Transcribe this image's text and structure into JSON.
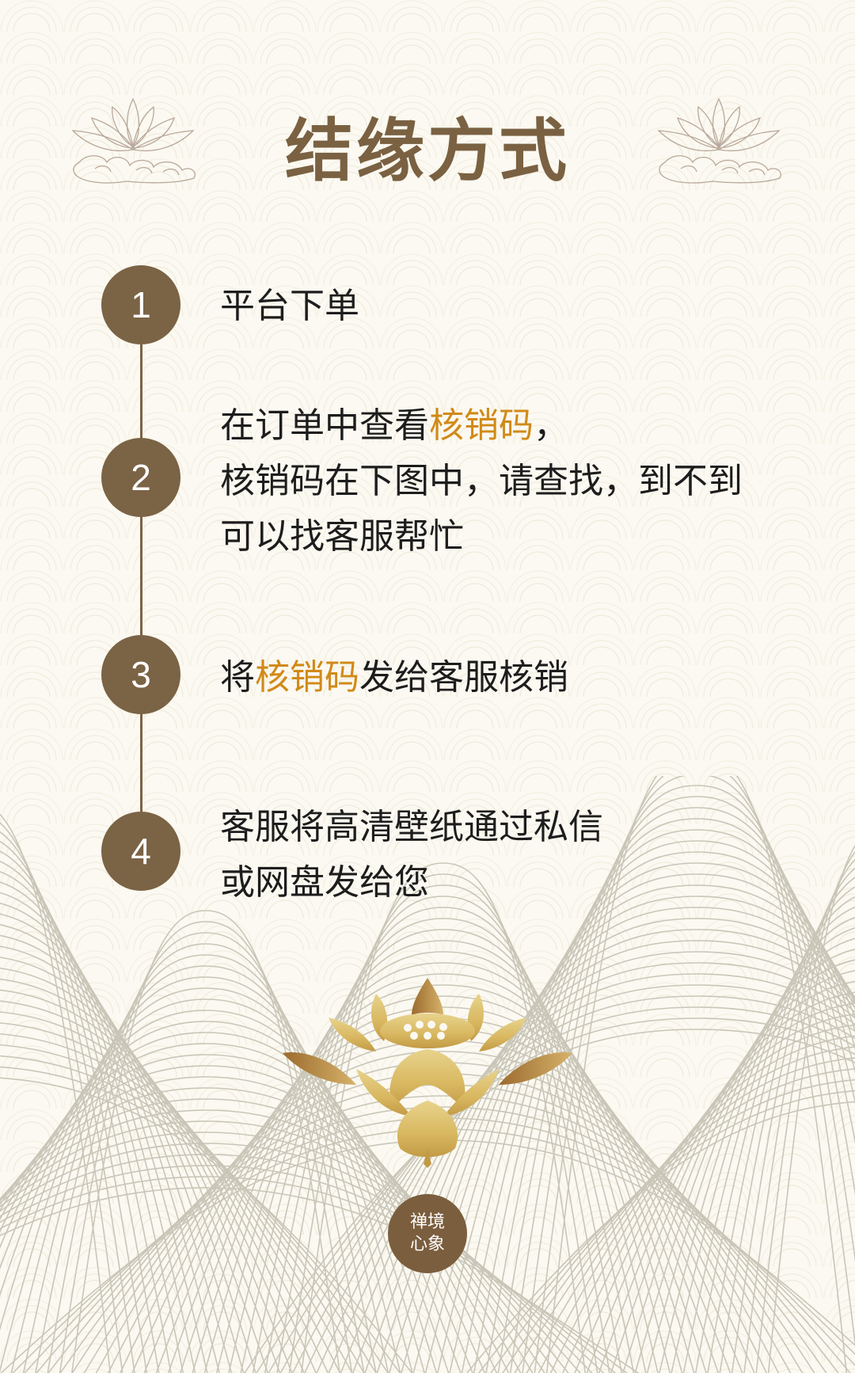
{
  "title": "结缘方式",
  "colors": {
    "accent": "#7b6345",
    "highlight": "#d18a18",
    "background": "#fbf9f1"
  },
  "steps": [
    {
      "number": "1",
      "lines": [
        [
          {
            "t": "平台下单"
          }
        ]
      ]
    },
    {
      "number": "2",
      "lines": [
        [
          {
            "t": "在订单中查看"
          },
          {
            "t": "核销码",
            "hl": true
          },
          {
            "t": "，"
          }
        ],
        [
          {
            "t": "核销码在下图中，请查找，到不到"
          }
        ],
        [
          {
            "t": "可以找客服帮忙"
          }
        ]
      ]
    },
    {
      "number": "3",
      "lines": [
        [
          {
            "t": "将"
          },
          {
            "t": "核销码",
            "hl": true
          },
          {
            "t": "发给客服核销"
          }
        ]
      ]
    },
    {
      "number": "4",
      "lines": [
        [
          {
            "t": "客服将高清壁纸通过私信"
          }
        ],
        [
          {
            "t": "或网盘发给您"
          }
        ]
      ]
    }
  ],
  "seal": {
    "line1": "禅境",
    "line2": "心象"
  },
  "decor": {
    "small_icon": "lotus-cloud-icon",
    "big_icon": "golden-lotus-icon"
  }
}
